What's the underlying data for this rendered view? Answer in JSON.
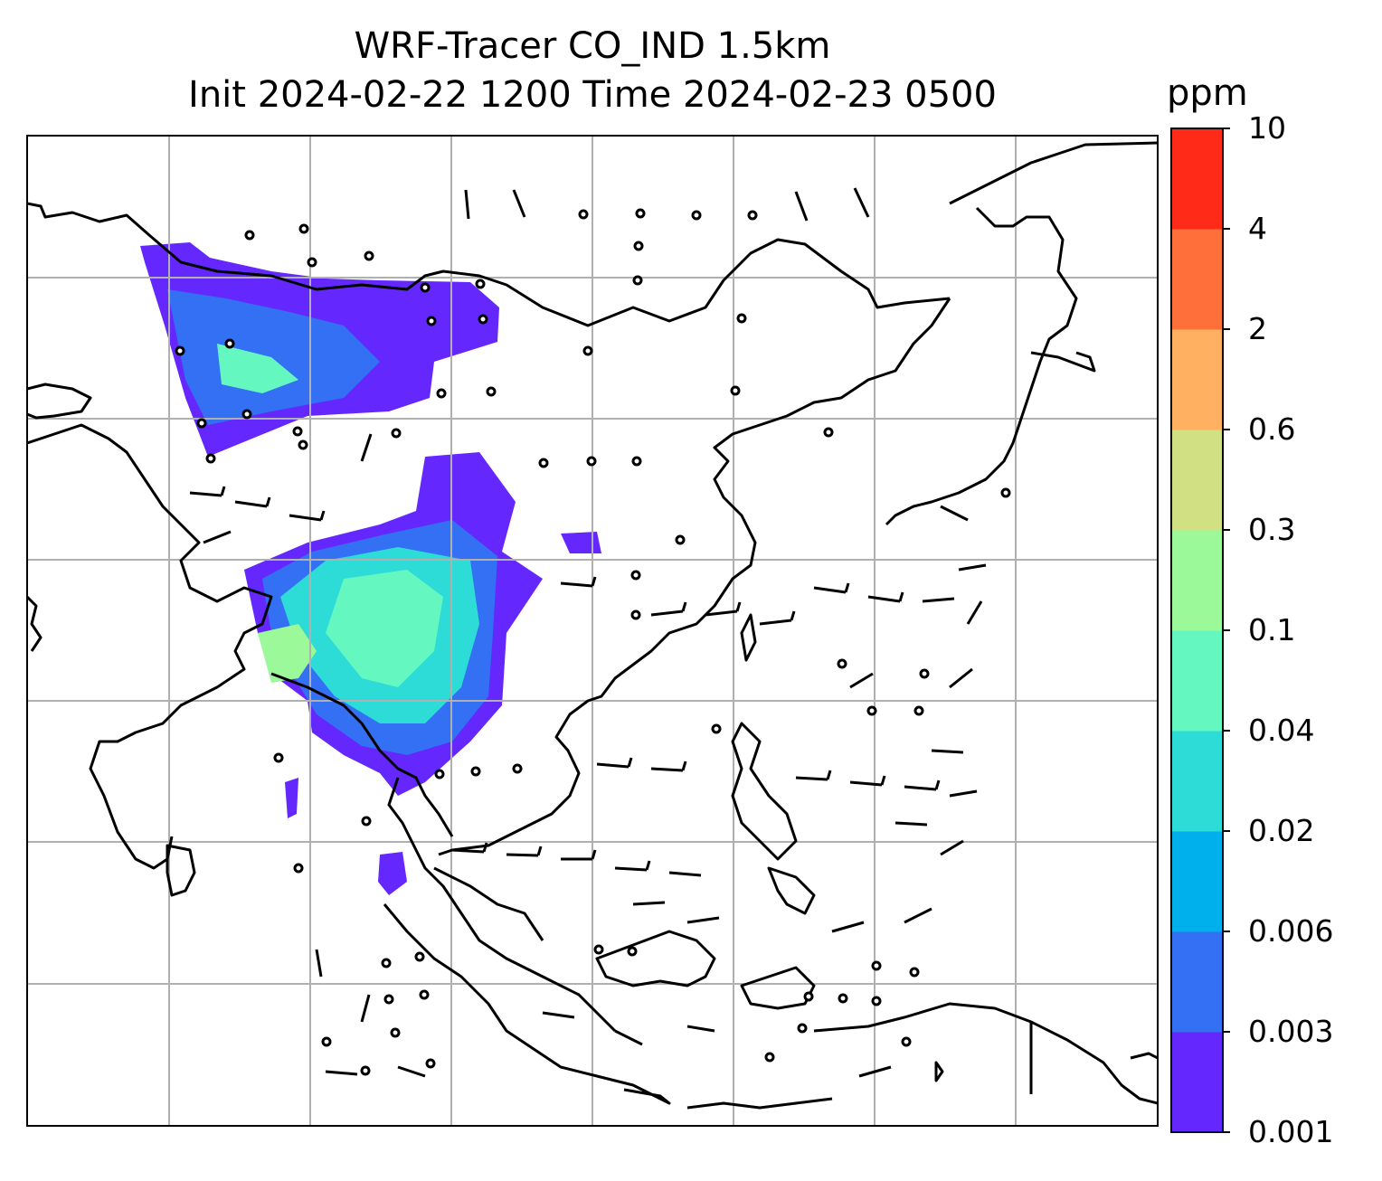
{
  "title": {
    "line1": "WRF-Tracer CO_IND 1.5km",
    "line2": "Init 2024-02-22 1200 Time 2024-02-23 0500"
  },
  "colorbar": {
    "units": "ppm",
    "tick_labels": [
      "0.001",
      "0.003",
      "0.006",
      "0.02",
      "0.04",
      "0.1",
      "0.3",
      "0.6",
      "2",
      "4",
      "10"
    ],
    "colors": [
      "#6428ff",
      "#3370f3",
      "#00b0ec",
      "#2ddcd6",
      "#65f7c0",
      "#9bf99a",
      "#d1e083",
      "#ffb060",
      "#ff6f3a",
      "#ff2a18"
    ]
  },
  "map": {
    "gridlines": true,
    "tracer_fill_colors": {
      "low": "#6428ff",
      "mid": "#3370f3",
      "cyan": "#2ddcd6",
      "mint": "#65f7c0",
      "green": "#9bf99a"
    }
  }
}
